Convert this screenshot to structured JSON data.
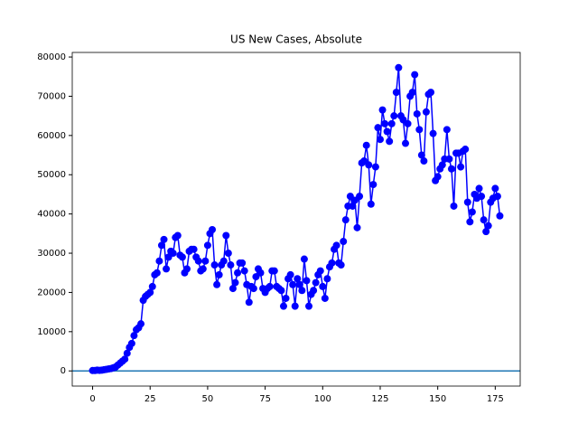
{
  "chart_data": {
    "type": "line",
    "title": "US New Cases, Absolute",
    "x": [
      0,
      1,
      2,
      3,
      4,
      5,
      6,
      7,
      8,
      9,
      10,
      11,
      12,
      13,
      14,
      15,
      16,
      17,
      18,
      19,
      20,
      21,
      22,
      23,
      24,
      25,
      26,
      27,
      28,
      29,
      30,
      31,
      32,
      33,
      34,
      35,
      36,
      37,
      38,
      39,
      40,
      41,
      42,
      43,
      44,
      45,
      46,
      47,
      48,
      49,
      50,
      51,
      52,
      53,
      54,
      55,
      56,
      57,
      58,
      59,
      60,
      61,
      62,
      63,
      64,
      65,
      66,
      67,
      68,
      69,
      70,
      71,
      72,
      73,
      74,
      75,
      76,
      77,
      78,
      79,
      80,
      81,
      82,
      83,
      84,
      85,
      86,
      87,
      88,
      89,
      90,
      91,
      92,
      93,
      94,
      95,
      96,
      97,
      98,
      99,
      100,
      101,
      102,
      103,
      104,
      105,
      106,
      107,
      108,
      109,
      110,
      111,
      112,
      113,
      114,
      115,
      116,
      117,
      118,
      119,
      120,
      121,
      122,
      123,
      124,
      125,
      126,
      127,
      128,
      129,
      130,
      131,
      132,
      133,
      134,
      135,
      136,
      137,
      138,
      139,
      140,
      141,
      142,
      143,
      144,
      145,
      146,
      147,
      148,
      149,
      150,
      151,
      152,
      153,
      154,
      155,
      156,
      157,
      158,
      159,
      160,
      161,
      162,
      163,
      164,
      165,
      166,
      167,
      168,
      169,
      170,
      171,
      172,
      173,
      174,
      175,
      176,
      177
    ],
    "series": [
      {
        "name": "US",
        "color": "#0000ff",
        "marker": "o",
        "values": [
          100,
          100,
          200,
          150,
          200,
          300,
          400,
          500,
          600,
          800,
          1000,
          1500,
          2000,
          2500,
          3000,
          4500,
          6000,
          7000,
          9000,
          10500,
          11000,
          12000,
          18000,
          19000,
          19500,
          20000,
          21500,
          24500,
          25000,
          28000,
          32000,
          33500,
          26000,
          29000,
          30500,
          30000,
          34000,
          34500,
          29500,
          29000,
          25000,
          26000,
          30500,
          31000,
          31000,
          29000,
          28000,
          25500,
          26000,
          28000,
          32000,
          35000,
          36000,
          27000,
          22000,
          24500,
          27000,
          28000,
          34500,
          30000,
          27000,
          21000,
          22500,
          25000,
          27500,
          27500,
          25500,
          22000,
          17500,
          21500,
          21000,
          24000,
          26000,
          25000,
          21000,
          20000,
          21000,
          21500,
          25500,
          25500,
          21500,
          21000,
          20500,
          16500,
          18500,
          23500,
          24500,
          22000,
          16500,
          23500,
          22000,
          20500,
          28500,
          23000,
          16500,
          19500,
          20500,
          22500,
          24500,
          25500,
          21500,
          18500,
          23500,
          26500,
          27500,
          31000,
          32000,
          27500,
          27000,
          33000,
          38500,
          42000,
          44500,
          42000,
          43500,
          36500,
          44500,
          53000,
          53500,
          57500,
          52500,
          42500,
          47500,
          52000,
          62000,
          59000,
          66500,
          63000,
          61000,
          58500,
          63000,
          65000,
          71000,
          77300,
          65000,
          64000,
          58000,
          63000,
          70000,
          71000,
          75500,
          65500,
          61500,
          55000,
          53500,
          66000,
          70500,
          71000,
          60500,
          48500,
          49500,
          51500,
          52500,
          54000,
          61500,
          54000,
          51500,
          42000,
          55500,
          55500,
          52000,
          56000,
          56500,
          43000,
          38000,
          40500,
          45000,
          44000,
          46500,
          44500,
          38500,
          35500,
          37000,
          43000,
          44000,
          46500,
          44500,
          39500
        ]
      }
    ],
    "hline": {
      "value": 0,
      "color": "#1f77b4"
    },
    "xlim": [
      -8.85,
      185.85
    ],
    "xticks": [
      0,
      25,
      50,
      75,
      100,
      125,
      150,
      175
    ],
    "ylim": [
      -3865,
      81165
    ],
    "yticks": [
      0,
      10000,
      20000,
      30000,
      40000,
      50000,
      60000,
      70000,
      80000
    ]
  }
}
